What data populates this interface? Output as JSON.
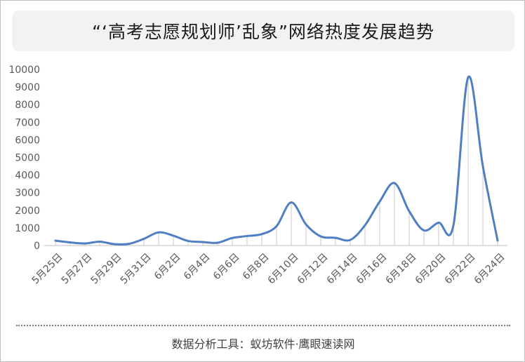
{
  "title": "“‘高考志愿规划师’乱象”网络热度发展趋势",
  "footer": "数据分析工具：蚁坊软件·鹰眼速读网",
  "colors": {
    "line": "#4f7ec2",
    "drop": "#c8c8c8",
    "axis": "#bfbfbf"
  },
  "chart_data": {
    "type": "line",
    "title": "“‘高考志愿规划师’乱象”网络热度发展趋势",
    "xlabel": "",
    "ylabel": "",
    "ylim": [
      0,
      10000
    ],
    "yticks": [
      0,
      1000,
      2000,
      3000,
      4000,
      5000,
      6000,
      7000,
      8000,
      9000,
      10000
    ],
    "grid": false,
    "legend": "none",
    "x": [
      "5月25日",
      "5月26日",
      "5月27日",
      "5月28日",
      "5月29日",
      "5月30日",
      "5月31日",
      "6月1日",
      "6月2日",
      "6月3日",
      "6月4日",
      "6月5日",
      "6月6日",
      "6月7日",
      "6月8日",
      "6月9日",
      "6月10日",
      "6月11日",
      "6月12日",
      "6月13日",
      "6月14日",
      "6月15日",
      "6月16日",
      "6月17日",
      "6月18日",
      "6月19日",
      "6月20日",
      "6月21日",
      "6月22日",
      "6月23日",
      "6月24日"
    ],
    "xtick_labels": [
      "5月25日",
      "5月27日",
      "5月29日",
      "5月31日",
      "6月2日",
      "6月4日",
      "6月6日",
      "6月8日",
      "6月10日",
      "6月12日",
      "6月14日",
      "6月16日",
      "6月18日",
      "6月20日",
      "6月22日",
      "6月24日"
    ],
    "series": [
      {
        "values": [
          280,
          180,
          120,
          220,
          80,
          100,
          380,
          750,
          560,
          260,
          200,
          160,
          430,
          540,
          650,
          1100,
          2450,
          1200,
          520,
          440,
          320,
          1150,
          2500,
          3550,
          1950,
          860,
          1300,
          1150,
          9550,
          4500,
          280
        ]
      }
    ]
  }
}
